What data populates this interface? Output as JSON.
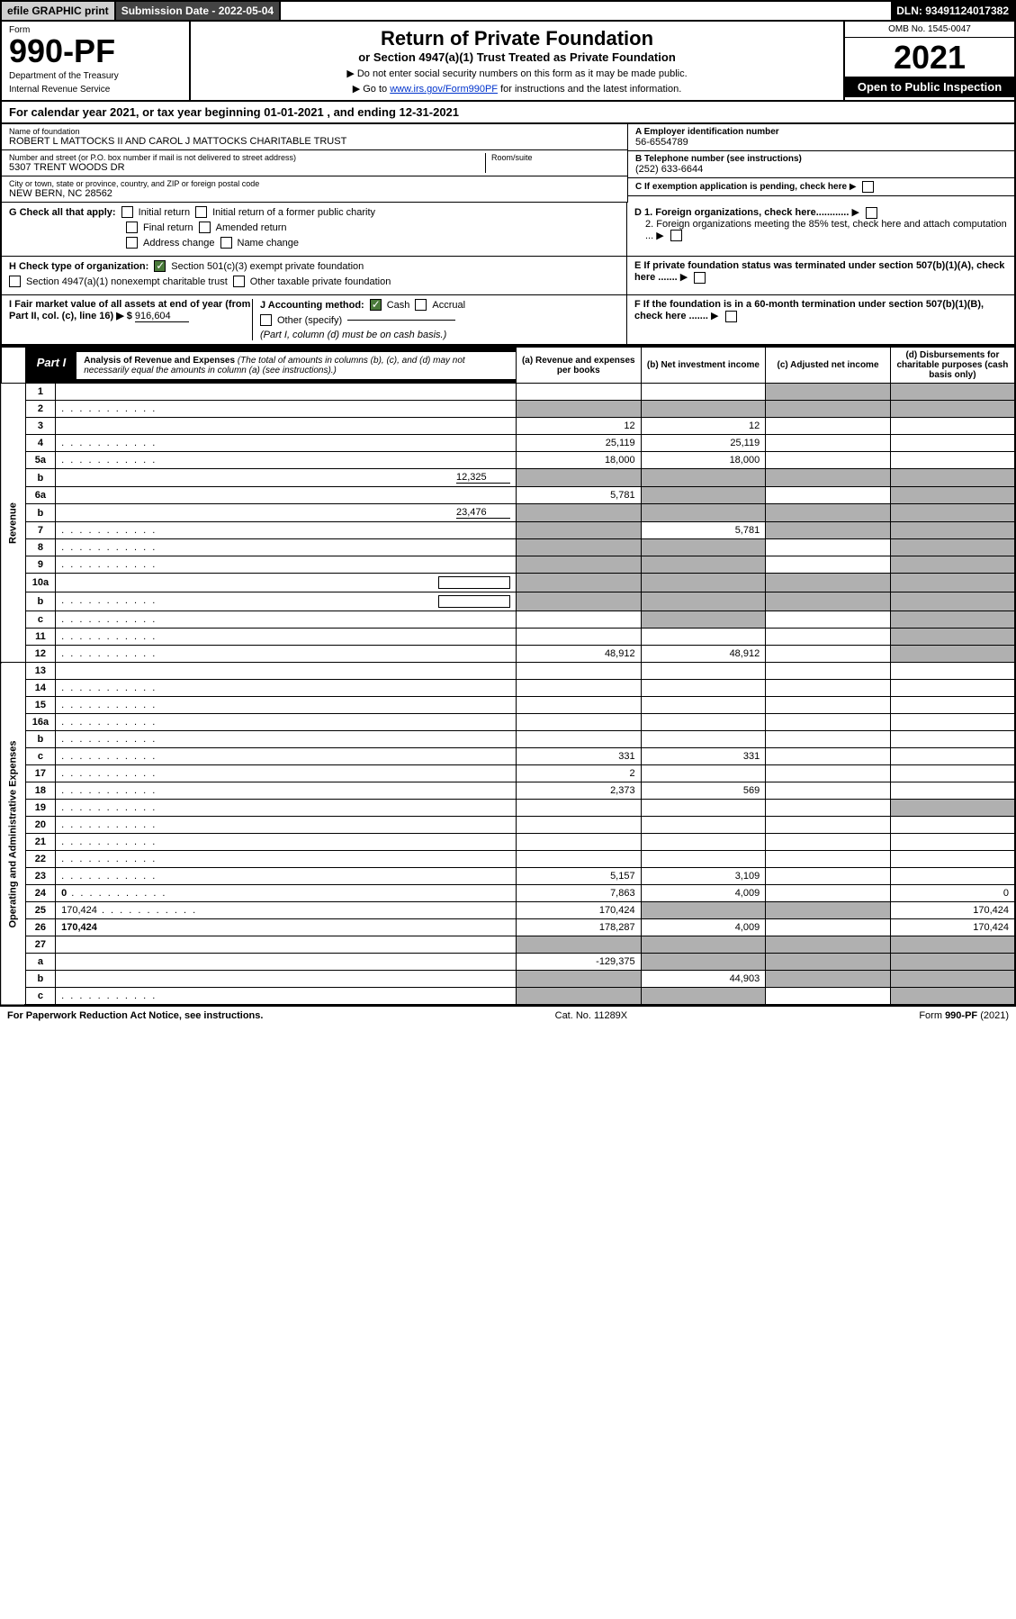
{
  "topbar": {
    "efile": "efile GRAPHIC print",
    "sub_label": "Submission Date - 2022-05-04",
    "dln": "DLN: 93491124017382"
  },
  "header": {
    "form_word": "Form",
    "form_number": "990-PF",
    "dept": "Department of the Treasury",
    "irs": "Internal Revenue Service",
    "title": "Return of Private Foundation",
    "subtitle": "or Section 4947(a)(1) Trust Treated as Private Foundation",
    "note1": "▶ Do not enter social security numbers on this form as it may be made public.",
    "note2_pre": "▶ Go to ",
    "note2_link": "www.irs.gov/Form990PF",
    "note2_post": " for instructions and the latest information.",
    "omb": "OMB No. 1545-0047",
    "year": "2021",
    "open": "Open to Public Inspection"
  },
  "calyear": {
    "pre": "For calendar year 2021, or tax year beginning ",
    "begin": "01-01-2021",
    "mid": " , and ending ",
    "end": "12-31-2021"
  },
  "info": {
    "name_label": "Name of foundation",
    "name_value": "ROBERT L MATTOCKS II AND CAROL J MATTOCKS CHARITABLE TRUST",
    "addr_label": "Number and street (or P.O. box number if mail is not delivered to street address)",
    "addr_value": "5307 TRENT WOODS DR",
    "room_label": "Room/suite",
    "city_label": "City or town, state or province, country, and ZIP or foreign postal code",
    "city_value": "NEW BERN, NC  28562",
    "ein_label": "A Employer identification number",
    "ein_value": "56-6554789",
    "tel_label": "B Telephone number (see instructions)",
    "tel_value": "(252) 633-6644",
    "c_label": "C If exemption application is pending, check here",
    "d1": "D 1. Foreign organizations, check here............",
    "d2": "2. Foreign organizations meeting the 85% test, check here and attach computation ...",
    "e": "E  If private foundation status was terminated under section 507(b)(1)(A), check here .......",
    "f": "F  If the foundation is in a 60-month termination under section 507(b)(1)(B), check here ......."
  },
  "checks": {
    "g_label": "G Check all that apply:",
    "g1": "Initial return",
    "g2": "Initial return of a former public charity",
    "g3": "Final return",
    "g4": "Amended return",
    "g5": "Address change",
    "g6": "Name change",
    "h_label": "H Check type of organization:",
    "h1": "Section 501(c)(3) exempt private foundation",
    "h2": "Section 4947(a)(1) nonexempt charitable trust",
    "h3": "Other taxable private foundation",
    "i_label": "I Fair market value of all assets at end of year (from Part II, col. (c), line 16) ▶ $",
    "i_value": "916,604",
    "j_label": "J Accounting method:",
    "j1": "Cash",
    "j2": "Accrual",
    "j3": "Other (specify)",
    "j_note": "(Part I, column (d) must be on cash basis.)"
  },
  "part1": {
    "tab": "Part I",
    "title": "Analysis of Revenue and Expenses",
    "title_note": "(The total of amounts in columns (b), (c), and (d) may not necessarily equal the amounts in column (a) (see instructions).)",
    "col_a": "(a) Revenue and expenses per books",
    "col_b": "(b) Net investment income",
    "col_c": "(c) Adjusted net income",
    "col_d": "(d) Disbursements for charitable purposes (cash basis only)"
  },
  "sidelabels": {
    "revenue": "Revenue",
    "expenses": "Operating and Administrative Expenses"
  },
  "rows": [
    {
      "n": "1",
      "d": "",
      "a": "",
      "b": "",
      "c": "",
      "sa": false,
      "sb": false,
      "sc": true,
      "sd": true
    },
    {
      "n": "2",
      "d": "",
      "dots": true,
      "a": "",
      "b": "",
      "c": "",
      "sa": true,
      "sb": true,
      "sc": true,
      "sd": true
    },
    {
      "n": "3",
      "d": "",
      "a": "12",
      "b": "12",
      "c": ""
    },
    {
      "n": "4",
      "d": "",
      "dots": true,
      "a": "25,119",
      "b": "25,119",
      "c": ""
    },
    {
      "n": "5a",
      "d": "",
      "dots": true,
      "a": "18,000",
      "b": "18,000",
      "c": ""
    },
    {
      "n": "b",
      "d": "",
      "extra": "12,325",
      "a": "",
      "b": "",
      "c": "",
      "sa": true,
      "sb": true,
      "sc": true,
      "sd": true
    },
    {
      "n": "6a",
      "d": "",
      "a": "5,781",
      "b": "",
      "c": "",
      "sb": true,
      "sd": true
    },
    {
      "n": "b",
      "d": "",
      "extra": "23,476",
      "a": "",
      "b": "",
      "c": "",
      "sa": true,
      "sb": true,
      "sc": true,
      "sd": true
    },
    {
      "n": "7",
      "d": "",
      "dots": true,
      "a": "",
      "b": "5,781",
      "c": "",
      "sa": true,
      "sc": true,
      "sd": true
    },
    {
      "n": "8",
      "d": "",
      "dots": true,
      "a": "",
      "b": "",
      "c": "",
      "sa": true,
      "sb": true,
      "sd": true
    },
    {
      "n": "9",
      "d": "",
      "dots": true,
      "a": "",
      "b": "",
      "c": "",
      "sa": true,
      "sb": true,
      "sd": true
    },
    {
      "n": "10a",
      "d": "",
      "box": true,
      "a": "",
      "b": "",
      "c": "",
      "sa": true,
      "sb": true,
      "sc": true,
      "sd": true
    },
    {
      "n": "b",
      "d": "",
      "dots": true,
      "box": true,
      "a": "",
      "b": "",
      "c": "",
      "sa": true,
      "sb": true,
      "sc": true,
      "sd": true
    },
    {
      "n": "c",
      "d": "",
      "dots": true,
      "a": "",
      "b": "",
      "c": "",
      "sb": true,
      "sd": true
    },
    {
      "n": "11",
      "d": "",
      "dots": true,
      "a": "",
      "b": "",
      "c": "",
      "sd": true
    },
    {
      "n": "12",
      "d": "",
      "dots": true,
      "bold": true,
      "a": "48,912",
      "b": "48,912",
      "c": "",
      "sd": true
    },
    {
      "n": "13",
      "d": "",
      "a": "",
      "b": "",
      "c": ""
    },
    {
      "n": "14",
      "d": "",
      "dots": true,
      "a": "",
      "b": "",
      "c": ""
    },
    {
      "n": "15",
      "d": "",
      "dots": true,
      "a": "",
      "b": "",
      "c": ""
    },
    {
      "n": "16a",
      "d": "",
      "dots": true,
      "a": "",
      "b": "",
      "c": ""
    },
    {
      "n": "b",
      "d": "",
      "dots": true,
      "a": "",
      "b": "",
      "c": ""
    },
    {
      "n": "c",
      "d": "",
      "dots": true,
      "a": "331",
      "b": "331",
      "c": ""
    },
    {
      "n": "17",
      "d": "",
      "dots": true,
      "a": "2",
      "b": "",
      "c": ""
    },
    {
      "n": "18",
      "d": "",
      "dots": true,
      "a": "2,373",
      "b": "569",
      "c": ""
    },
    {
      "n": "19",
      "d": "",
      "dots": true,
      "a": "",
      "b": "",
      "c": "",
      "sd": true
    },
    {
      "n": "20",
      "d": "",
      "dots": true,
      "a": "",
      "b": "",
      "c": ""
    },
    {
      "n": "21",
      "d": "",
      "dots": true,
      "a": "",
      "b": "",
      "c": ""
    },
    {
      "n": "22",
      "d": "",
      "dots": true,
      "a": "",
      "b": "",
      "c": ""
    },
    {
      "n": "23",
      "d": "",
      "dots": true,
      "a": "5,157",
      "b": "3,109",
      "c": ""
    },
    {
      "n": "24",
      "d": "0",
      "dots": true,
      "bold": true,
      "a": "7,863",
      "b": "4,009",
      "c": ""
    },
    {
      "n": "25",
      "d": "170,424",
      "dots": true,
      "a": "170,424",
      "b": "",
      "c": "",
      "sb": true,
      "sc": true
    },
    {
      "n": "26",
      "d": "170,424",
      "bold": true,
      "a": "178,287",
      "b": "4,009",
      "c": ""
    },
    {
      "n": "27",
      "d": "",
      "a": "",
      "b": "",
      "c": "",
      "sa": true,
      "sb": true,
      "sc": true,
      "sd": true
    },
    {
      "n": "a",
      "d": "",
      "bold": true,
      "a": "-129,375",
      "b": "",
      "c": "",
      "sb": true,
      "sc": true,
      "sd": true
    },
    {
      "n": "b",
      "d": "",
      "bold": true,
      "a": "",
      "b": "44,903",
      "c": "",
      "sa": true,
      "sc": true,
      "sd": true
    },
    {
      "n": "c",
      "d": "",
      "dots": true,
      "bold": true,
      "a": "",
      "b": "",
      "c": "",
      "sa": true,
      "sb": true,
      "sd": true
    }
  ],
  "footer": {
    "left": "For Paperwork Reduction Act Notice, see instructions.",
    "mid": "Cat. No. 11289X",
    "right": "Form 990-PF (2021)"
  }
}
